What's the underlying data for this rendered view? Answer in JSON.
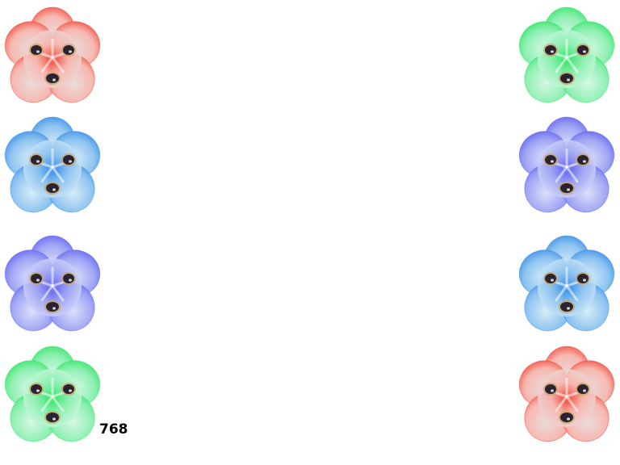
{
  "score": "768",
  "left_column": [
    {
      "color": "red",
      "icon": "red-flower-icon",
      "accent": "#f23a2a",
      "tint": "#f6b8b0",
      "pale": "#eadcdc"
    },
    {
      "color": "blue",
      "icon": "blue-flower-icon",
      "accent": "#2e86e6",
      "tint": "#8ec4f0",
      "pale": "#d8ecf8"
    },
    {
      "color": "violet",
      "icon": "violet-flower-icon",
      "accent": "#5b59f2",
      "tint": "#9fa6f3",
      "pale": "#dee0fb"
    },
    {
      "color": "green",
      "icon": "green-flower-icon",
      "accent": "#27e35c",
      "tint": "#8ef0b2",
      "pale": "#d6f8e6"
    }
  ],
  "right_column": [
    {
      "color": "green",
      "icon": "green-flower-icon",
      "accent": "#27e35c",
      "tint": "#8ef0b2",
      "pale": "#d6f8e6"
    },
    {
      "color": "violet",
      "icon": "violet-flower-icon",
      "accent": "#5b59f2",
      "tint": "#9fa6f3",
      "pale": "#dee0fb"
    },
    {
      "color": "blue",
      "icon": "blue-flower-icon",
      "accent": "#2e86e6",
      "tint": "#8ec4f0",
      "pale": "#d8ecf8"
    },
    {
      "color": "red",
      "icon": "red-flower-icon",
      "accent": "#f23a2a",
      "tint": "#f6b8b0",
      "pale": "#eadcdc"
    }
  ]
}
